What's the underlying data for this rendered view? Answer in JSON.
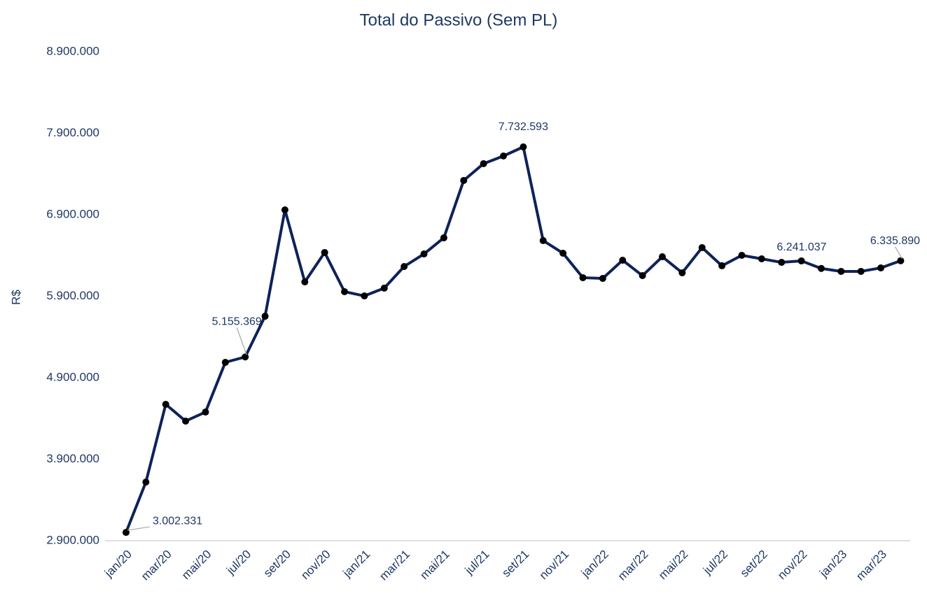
{
  "chart_data": {
    "type": "line",
    "title": "Total do Passivo (Sem PL)",
    "y_label": "R$",
    "categories": [
      "jan/20",
      null,
      "mar/20",
      null,
      "mai/20",
      null,
      "jul/20",
      null,
      "set/20",
      null,
      "nov/20",
      null,
      "jan/21",
      null,
      "mar/21",
      null,
      "mai/21",
      null,
      "jul/21",
      null,
      "set/21",
      null,
      "nov/21",
      null,
      "jan/22",
      null,
      "mar/22",
      null,
      "mai/22",
      null,
      "jul/22",
      null,
      "set/22",
      null,
      "nov/22",
      null,
      "jan/23",
      null,
      "mar/23",
      null
    ],
    "series": [
      {
        "name": "Total do Passivo (Sem PL)",
        "color": "#0e2259",
        "marker_color": "#000000",
        "values": [
          3002331,
          3620000,
          4574000,
          4368000,
          4479000,
          5089000,
          5155369,
          5655000,
          6960000,
          6076000,
          6437000,
          5956000,
          5904000,
          6000000,
          6265000,
          6419000,
          6617000,
          7321000,
          7527000,
          7621000,
          7732593,
          6583000,
          6428000,
          6128000,
          6119000,
          6342000,
          6153000,
          6385000,
          6188000,
          6497000,
          6274000,
          6402000,
          6359000,
          6316000,
          6334000,
          6241037,
          6205000,
          6205000,
          6248000,
          6335890
        ],
        "value_labels": [
          "3.002.331",
          null,
          null,
          null,
          null,
          null,
          "5.155.369",
          null,
          null,
          null,
          null,
          null,
          null,
          null,
          null,
          null,
          null,
          null,
          null,
          null,
          "7.732.593",
          null,
          null,
          null,
          null,
          null,
          null,
          null,
          null,
          null,
          null,
          null,
          null,
          null,
          null,
          "6.241.037",
          null,
          null,
          null,
          "6.335.890"
        ]
      }
    ],
    "ylim": [
      2900000,
      8900000
    ],
    "yticks": [
      {
        "value": 2900000,
        "label": "2.900.000"
      },
      {
        "value": 3900000,
        "label": "3.900.000"
      },
      {
        "value": 4900000,
        "label": "4.900.000"
      },
      {
        "value": 5900000,
        "label": "5.900.000"
      },
      {
        "value": 6900000,
        "label": "6.900.000"
      },
      {
        "value": 7900000,
        "label": "7.900.000"
      },
      {
        "value": 8900000,
        "label": "8.900.000"
      }
    ],
    "grid": false
  }
}
